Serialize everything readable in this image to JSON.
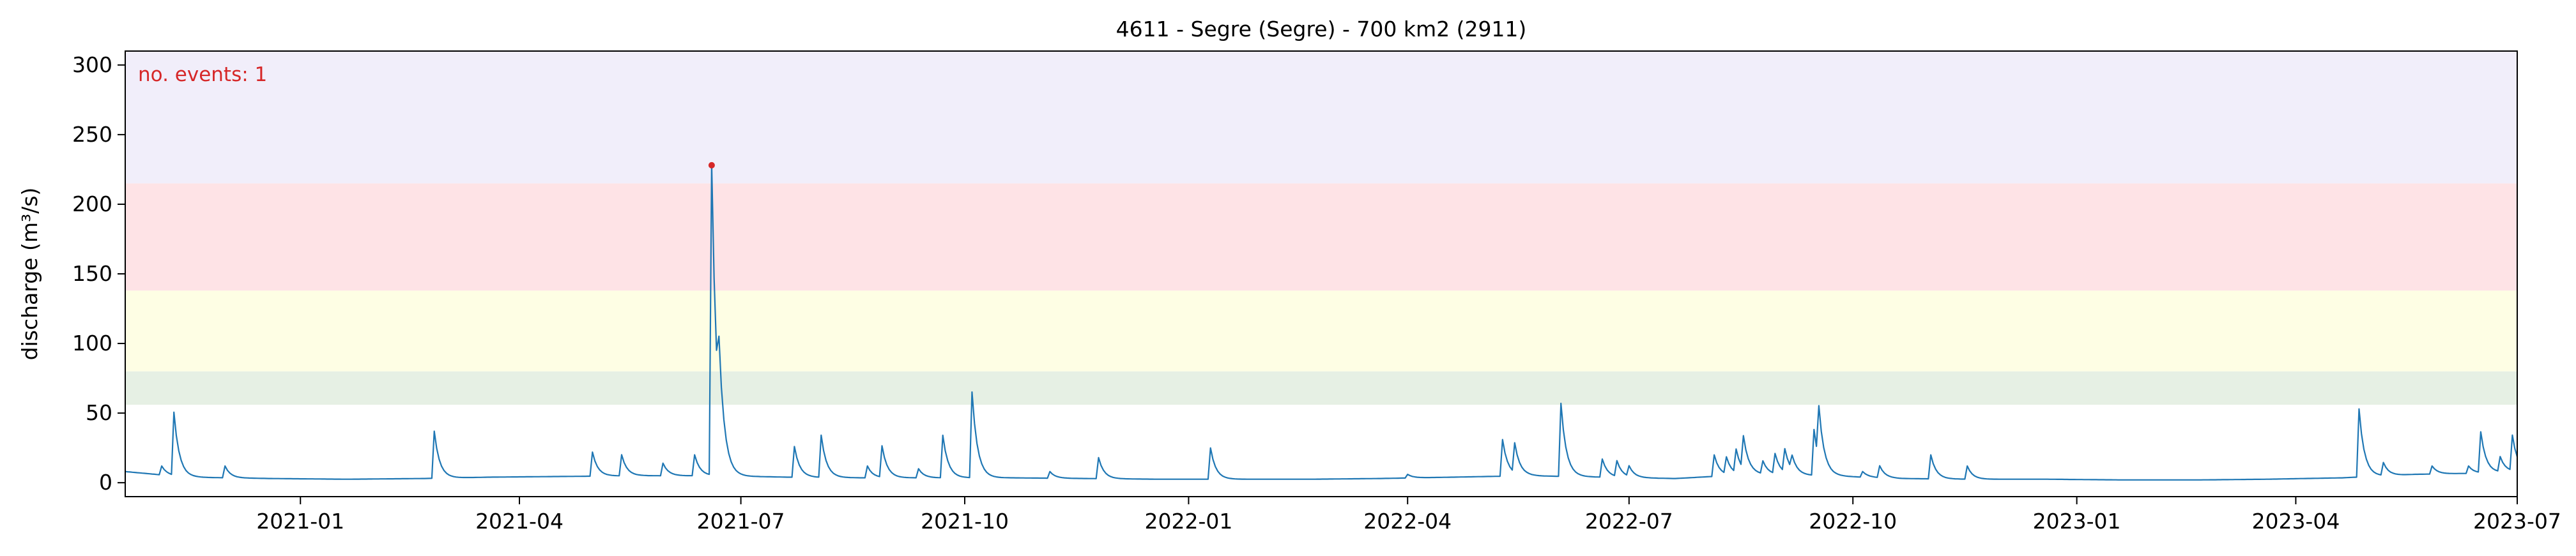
{
  "chart_data": {
    "type": "line",
    "title": "4611 - Segre (Segre) - 700 km2 (2911)",
    "ylabel": "discharge (m³/s)",
    "xlabel": "",
    "xlim": [
      "2020-10-21",
      "2023-07-01"
    ],
    "ylim": [
      -10,
      310
    ],
    "yticks": [
      0,
      50,
      100,
      150,
      200,
      250,
      300
    ],
    "xticks": [
      "2021-01",
      "2021-04",
      "2021-07",
      "2021-10",
      "2022-01",
      "2022-04",
      "2022-07",
      "2022-10",
      "2023-01",
      "2023-04",
      "2023-07"
    ],
    "threshold_bands": [
      {
        "from": 56,
        "to": 80,
        "color": "#e6f0e4"
      },
      {
        "from": 80,
        "to": 138,
        "color": "#fefee4"
      },
      {
        "from": 138,
        "to": 215,
        "color": "#fee3e6"
      },
      {
        "from": 215,
        "to": 310,
        "color": "#f1eefa"
      }
    ],
    "grid": false,
    "annotation": {
      "text": "no. events: 1",
      "color": "#d62728"
    },
    "series": [
      {
        "color": "#1f77b4",
        "baseflow": [
          [
            "2020-10-21",
            8
          ],
          [
            "2020-11-15",
            4
          ],
          [
            "2020-12-20",
            3
          ],
          [
            "2021-01-20",
            2.5
          ],
          [
            "2021-02-20",
            3
          ],
          [
            "2021-03-20",
            4
          ],
          [
            "2021-04-20",
            4.5
          ],
          [
            "2021-05-20",
            5
          ],
          [
            "2021-06-20",
            5
          ],
          [
            "2021-07-20",
            4
          ],
          [
            "2021-08-20",
            3.5
          ],
          [
            "2021-09-20",
            3.5
          ],
          [
            "2021-10-20",
            3.5
          ],
          [
            "2021-11-20",
            3
          ],
          [
            "2021-12-20",
            2.5
          ],
          [
            "2022-01-20",
            2.5
          ],
          [
            "2022-02-20",
            2.5
          ],
          [
            "2022-03-20",
            3
          ],
          [
            "2022-04-20",
            4
          ],
          [
            "2022-05-20",
            5
          ],
          [
            "2022-06-20",
            4
          ],
          [
            "2022-07-20",
            3
          ],
          [
            "2022-08-20",
            6
          ],
          [
            "2022-09-20",
            5
          ],
          [
            "2022-10-20",
            3
          ],
          [
            "2022-11-20",
            2.5
          ],
          [
            "2022-12-20",
            2.5
          ],
          [
            "2023-01-20",
            2
          ],
          [
            "2023-02-20",
            2
          ],
          [
            "2023-03-20",
            2.5
          ],
          [
            "2023-04-20",
            3.5
          ],
          [
            "2023-05-20",
            6
          ],
          [
            "2023-06-20",
            7
          ],
          [
            "2023-07-01",
            8
          ]
        ],
        "peaks": [
          [
            "2020-11-05",
            12
          ],
          [
            "2020-11-10",
            50
          ],
          [
            "2020-12-01",
            12
          ],
          [
            "2021-02-25",
            37
          ],
          [
            "2021-05-01",
            22
          ],
          [
            "2021-05-13",
            20
          ],
          [
            "2021-05-30",
            14
          ],
          [
            "2021-06-12",
            20
          ],
          [
            "2021-06-19",
            228
          ],
          [
            "2021-06-22",
            48
          ],
          [
            "2021-07-23",
            26
          ],
          [
            "2021-08-03",
            34
          ],
          [
            "2021-08-22",
            12
          ],
          [
            "2021-08-28",
            26
          ],
          [
            "2021-09-12",
            10
          ],
          [
            "2021-09-22",
            34
          ],
          [
            "2021-10-04",
            65
          ],
          [
            "2021-11-05",
            8
          ],
          [
            "2021-11-25",
            18
          ],
          [
            "2022-01-10",
            25
          ],
          [
            "2022-04-01",
            6
          ],
          [
            "2022-05-10",
            31
          ],
          [
            "2022-05-15",
            26
          ],
          [
            "2022-06-03",
            57
          ],
          [
            "2022-06-20",
            17
          ],
          [
            "2022-06-26",
            15
          ],
          [
            "2022-07-01",
            11
          ],
          [
            "2022-08-05",
            20
          ],
          [
            "2022-08-10",
            17
          ],
          [
            "2022-08-14",
            22
          ],
          [
            "2022-08-17",
            29
          ],
          [
            "2022-08-25",
            15
          ],
          [
            "2022-08-30",
            20
          ],
          [
            "2022-09-03",
            22
          ],
          [
            "2022-09-06",
            15
          ],
          [
            "2022-09-15",
            38
          ],
          [
            "2022-09-17",
            42
          ],
          [
            "2022-10-05",
            8
          ],
          [
            "2022-10-12",
            12
          ],
          [
            "2022-11-02",
            20
          ],
          [
            "2022-11-17",
            12
          ],
          [
            "2023-04-27",
            53
          ],
          [
            "2023-05-07",
            14
          ],
          [
            "2023-05-27",
            12
          ],
          [
            "2023-06-11",
            12
          ],
          [
            "2023-06-16",
            36
          ],
          [
            "2023-06-24",
            18
          ],
          [
            "2023-06-29",
            33
          ]
        ]
      }
    ],
    "events": [
      {
        "date": "2021-06-19",
        "value": 228,
        "color": "#d62728"
      }
    ]
  }
}
